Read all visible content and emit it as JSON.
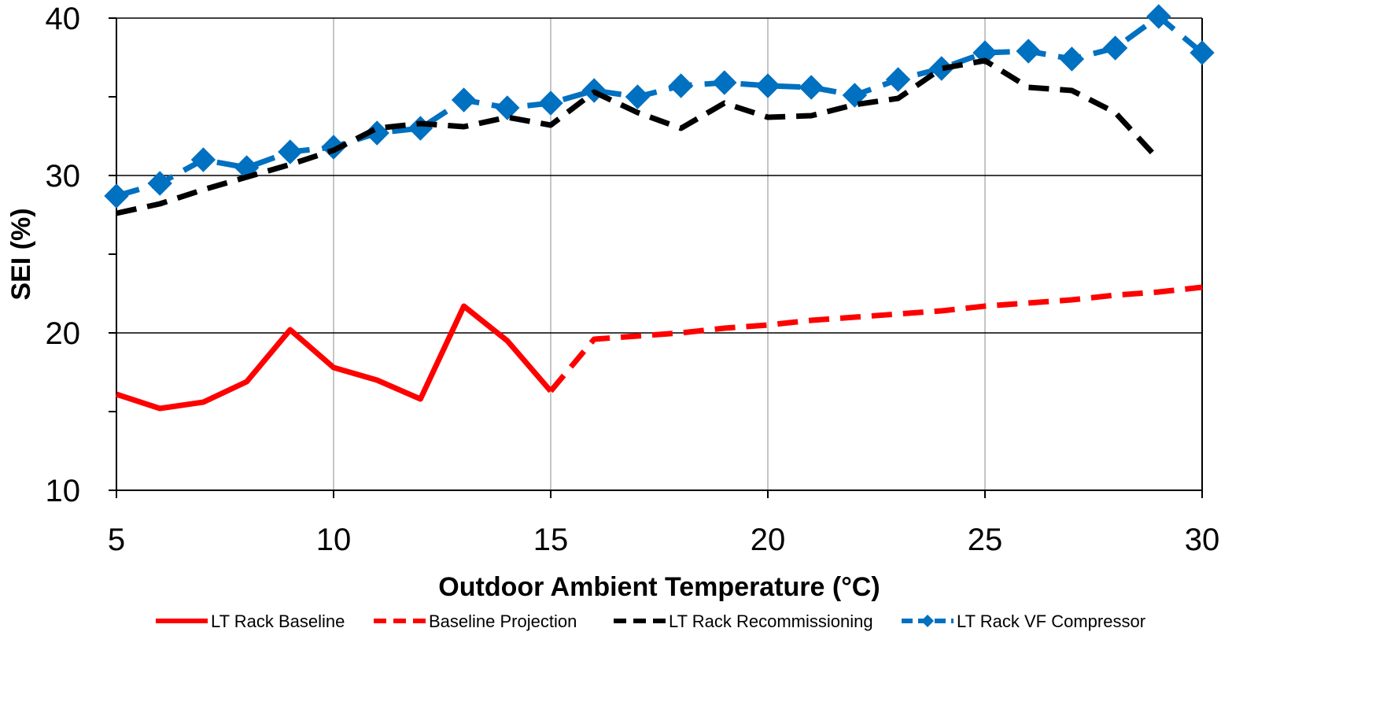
{
  "chart_data": {
    "type": "line",
    "title": "",
    "xlabel": "Outdoor Ambient Temperature (°C)",
    "ylabel": "SEI (%)",
    "xlim": [
      5,
      30
    ],
    "ylim": [
      10,
      40
    ],
    "x_ticks": [
      5,
      10,
      15,
      20,
      25,
      30
    ],
    "x_tick_labels": [
      "5",
      "10",
      "15",
      "20",
      "25",
      "30"
    ],
    "y_ticks": [
      10,
      20,
      30,
      40
    ],
    "y_tick_labels": [
      "10",
      "20",
      "30",
      "40"
    ],
    "y_minor_ticks": [
      15,
      25,
      35
    ],
    "grid": "major vertical (x) and major horizontal (y)",
    "legend_position": "bottom",
    "series": [
      {
        "name": "LT Rack Baseline",
        "color": "#ff0000",
        "line_style": "solid",
        "marker": "none",
        "x": [
          5,
          6,
          7,
          8,
          9,
          10,
          11,
          12,
          13,
          14,
          15
        ],
        "y": [
          16.1,
          15.2,
          15.6,
          16.9,
          20.2,
          17.8,
          17.0,
          15.8,
          21.7,
          19.5,
          16.3
        ]
      },
      {
        "name": "Baseline Projection",
        "color": "#ff0000",
        "line_style": "dashed",
        "marker": "none",
        "x": [
          15,
          16,
          17,
          18,
          19,
          20,
          21,
          22,
          23,
          24,
          25,
          26,
          27,
          28,
          29,
          30
        ],
        "y": [
          16.3,
          19.6,
          19.8,
          20.0,
          20.3,
          20.5,
          20.8,
          21.0,
          21.2,
          21.4,
          21.7,
          21.9,
          22.1,
          22.4,
          22.6,
          22.9
        ]
      },
      {
        "name": "LT Rack Recommissioning",
        "color": "#000000",
        "line_style": "dashed",
        "marker": "none",
        "x": [
          5,
          6,
          7,
          8,
          9,
          10,
          11,
          12,
          13,
          14,
          15,
          16,
          17,
          18,
          19,
          20,
          21,
          22,
          23,
          24,
          25,
          26,
          27,
          28,
          29
        ],
        "y": [
          27.6,
          28.2,
          29.1,
          29.9,
          30.7,
          31.6,
          33.0,
          33.3,
          33.1,
          33.7,
          33.2,
          35.3,
          34.0,
          33.0,
          34.6,
          33.7,
          33.8,
          34.5,
          34.9,
          36.8,
          37.3,
          35.6,
          35.4,
          34.0,
          31.0
        ]
      },
      {
        "name": "LT Rack VF Compressor",
        "color": "#0070c0",
        "line_style": "dashed",
        "marker": "diamond",
        "x": [
          5,
          6,
          7,
          8,
          9,
          10,
          11,
          12,
          13,
          14,
          15,
          16,
          17,
          18,
          19,
          20,
          21,
          22,
          23,
          24,
          25,
          26,
          27,
          28,
          29,
          30
        ],
        "y": [
          28.7,
          29.5,
          31.0,
          30.5,
          31.5,
          31.8,
          32.7,
          33.0,
          34.8,
          34.3,
          34.6,
          35.4,
          35.0,
          35.7,
          35.9,
          35.7,
          35.6,
          35.1,
          36.1,
          36.8,
          37.8,
          37.9,
          37.4,
          38.1,
          40.1,
          37.8
        ]
      }
    ]
  }
}
